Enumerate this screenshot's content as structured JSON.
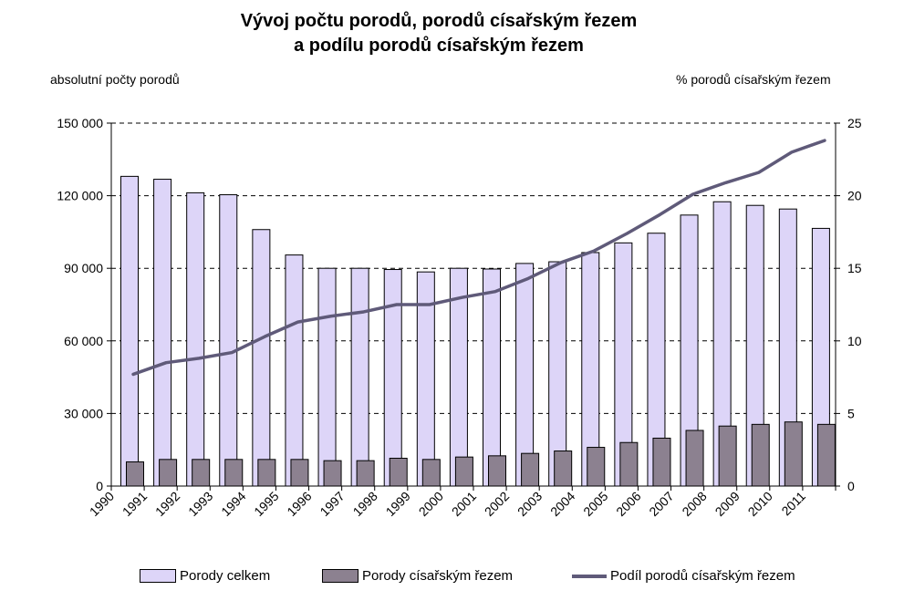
{
  "title_line1": "Vývoj počtu porodů, porodů císařským řezem",
  "title_line2": "a podílu porodů císařským řezem",
  "left_axis_label": "absolutní počty porodů",
  "right_axis_label": "% porodů císařským řezem",
  "colors": {
    "total_bar": "#ddd5f8",
    "caesarean_bar": "#8c8190",
    "share_line": "#5f5a79"
  },
  "chart_data": {
    "type": "bar",
    "categories": [
      "1990",
      "1991",
      "1992",
      "1993",
      "1994",
      "1995",
      "1996",
      "1997",
      "1998",
      "1999",
      "2000",
      "2001",
      "2002",
      "2003",
      "2004",
      "2005",
      "2006",
      "2007",
      "2008",
      "2009",
      "2010",
      "2011"
    ],
    "series": [
      {
        "name": "Porody celkem",
        "type": "bar",
        "axis": "left",
        "values": [
          128000,
          126800,
          121200,
          120400,
          106000,
          95500,
          90000,
          90000,
          89500,
          88500,
          90000,
          89700,
          92000,
          92700,
          96500,
          100500,
          104500,
          112000,
          117500,
          116000,
          114500,
          106500
        ]
      },
      {
        "name": "Porody císařským řezem",
        "type": "bar",
        "axis": "left",
        "values": [
          10000,
          11000,
          11000,
          11000,
          11000,
          11000,
          10500,
          10500,
          11500,
          11000,
          12000,
          12500,
          13500,
          14500,
          16000,
          18000,
          19800,
          23000,
          24800,
          25500,
          26500,
          25500
        ]
      },
      {
        "name": "Podíl porodů císařským řezem",
        "type": "line",
        "axis": "right",
        "values": [
          7.7,
          8.5,
          8.8,
          9.2,
          10.3,
          11.3,
          11.7,
          12.0,
          12.5,
          12.5,
          13.0,
          13.4,
          14.3,
          15.4,
          16.2,
          17.4,
          18.7,
          20.1,
          20.9,
          21.6,
          23.0,
          23.8
        ]
      }
    ],
    "y_left": {
      "min": 0,
      "max": 150000,
      "ticks": [
        0,
        30000,
        60000,
        90000,
        120000,
        150000
      ],
      "tick_labels": [
        "0",
        "30 000",
        "60 000",
        "90 000",
        "120 000",
        "150 000"
      ]
    },
    "y_right": {
      "min": 0,
      "max": 25,
      "ticks": [
        0,
        5,
        10,
        15,
        20,
        25
      ],
      "tick_labels": [
        "0",
        "5",
        "10",
        "15",
        "20",
        "25"
      ]
    },
    "grid": "dashed horizontal",
    "legend_position": "bottom"
  }
}
